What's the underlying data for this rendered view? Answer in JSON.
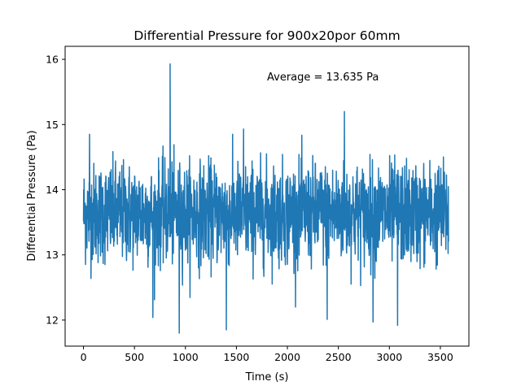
{
  "chart_data": {
    "type": "line",
    "title": "Differential Pressure for 900x20por 60mm",
    "xlabel": "Time (s)",
    "ylabel": "Differential Pressure (Pa)",
    "xlim": [
      -180,
      3780
    ],
    "ylim": [
      11.6,
      16.2
    ],
    "xticks": [
      0,
      500,
      1000,
      1500,
      2000,
      2500,
      3000,
      3500
    ],
    "yticks": [
      12,
      13,
      14,
      15,
      16
    ],
    "annotation": "Average = 13.635 Pa",
    "grid": false,
    "legend": "none",
    "series": [
      {
        "color": "#1f77b4",
        "mean": 13.635,
        "x_range": [
          0,
          3580
        ],
        "sample_count": 1800,
        "extremes": [
          {
            "x": 850,
            "y": 15.93
          },
          {
            "x": 940,
            "y": 11.8
          },
          {
            "x": 1400,
            "y": 11.85
          },
          {
            "x": 2560,
            "y": 15.2
          },
          {
            "x": 3080,
            "y": 11.92
          },
          {
            "x": 2840,
            "y": 11.97
          },
          {
            "x": 680,
            "y": 12.04
          },
          {
            "x": 2390,
            "y": 12.01
          },
          {
            "x": 60,
            "y": 14.85
          },
          {
            "x": 1570,
            "y": 14.93
          }
        ]
      }
    ]
  }
}
